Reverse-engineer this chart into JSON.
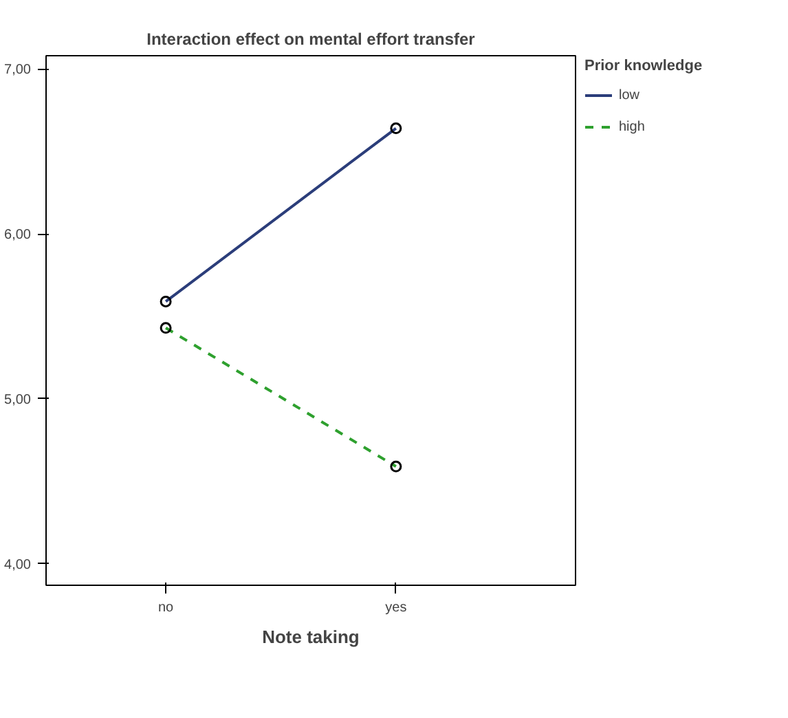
{
  "chart_data": {
    "type": "line",
    "title": "Interaction effect on mental effort transfer",
    "xlabel": "Note taking",
    "legend_title": "Prior knowledge",
    "categories": [
      "no",
      "yes"
    ],
    "series": [
      {
        "name": "low",
        "color": "#2b3d7a",
        "values": [
          5.59,
          6.64
        ],
        "line_style": "solid"
      },
      {
        "name": "high",
        "color": "#2ea02e",
        "values": [
          5.43,
          4.59
        ],
        "line_style": "dashed"
      }
    ],
    "ylim": [
      3.87,
      7.08
    ],
    "yticks": [
      {
        "value": 4,
        "label": "4,00"
      },
      {
        "value": 5,
        "label": "5,00"
      },
      {
        "value": 6,
        "label": "6,00"
      },
      {
        "value": 7,
        "label": "7,00"
      }
    ],
    "marker": "circle",
    "legend": "top right",
    "grid": false
  }
}
